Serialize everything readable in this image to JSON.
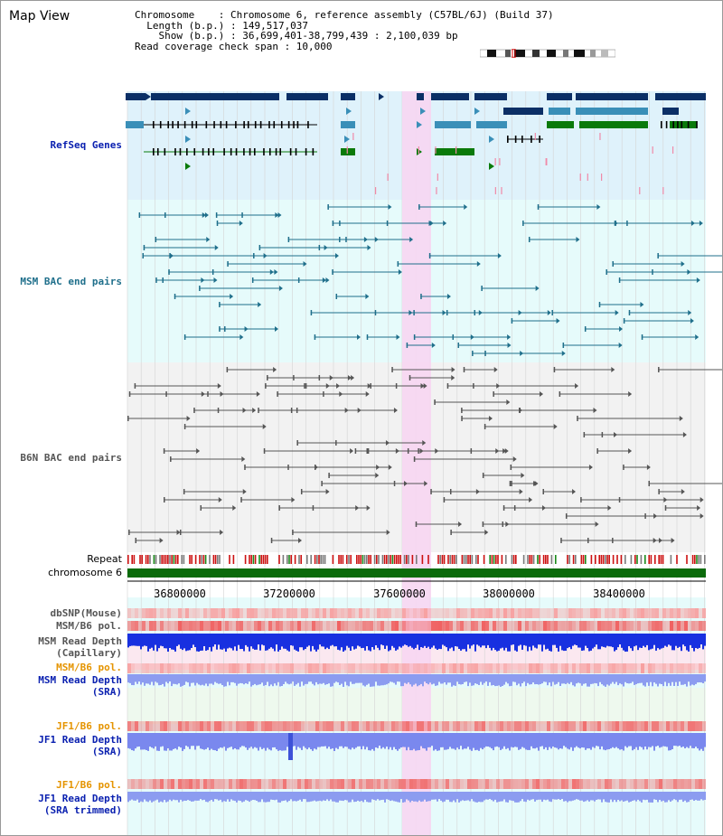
{
  "title": "Map View",
  "header": {
    "chromosome_line": "Chromosome    : Chromosome 6, reference assembly (C57BL/6J) (Build 37)",
    "length_line": "  Length (b.p.) : 149,517,037",
    "show_line": "    Show (b.p.) : 36,699,401-38,799,439 : 2,100,039 bp",
    "coverage_line": "Read coverage check span : 10,000"
  },
  "tracks": {
    "refseq": "RefSeq Genes",
    "msm_bac": "MSM BAC end pairs",
    "b6n_bac": "B6N BAC end pairs",
    "repeat": "Repeat",
    "chromosome": "chromosome 6",
    "dbsnp": "dbSNP(Mouse)",
    "msm_b6_pol": "MSM/B6 pol.",
    "msm_depth_cap_1": "MSM Read Depth",
    "msm_depth_cap_2": "(Capillary)",
    "msm_b6_pol_2": "MSM/B6 pol.",
    "msm_depth_sra_1": "MSM Read Depth",
    "msm_depth_sra_2": "(SRA)",
    "jf1_b6_pol": "JF1/B6 pol.",
    "jf1_depth_1": "JF1 Read Depth",
    "jf1_depth_2": "(SRA)",
    "jf1_b6_pol_2": "JF1/B6 pol.",
    "jf1_trim_1": "JF1 Read Depth",
    "jf1_trim_2": "(SRA trimmed)"
  },
  "axis": {
    "ticks": [
      "36800000",
      "37200000",
      "37600000",
      "38000000",
      "38400000"
    ]
  },
  "colors": {
    "refseq_bg": "#dff2fb",
    "msm_bg": "#e6fbfb",
    "b6n_bg": "#f2f2f2",
    "highlight": "#f7d6f2",
    "gene_navy": "#0b2f66",
    "gene_teal": "#3a8fb8",
    "gene_green": "#0a7a0a",
    "msm_pair": "#1f6f8b",
    "b6n_pair": "#555555",
    "chrom_bar": "#0b6b0b",
    "label_blue": "#0a20b0",
    "label_orange": "#e59400",
    "label_gray": "#333333"
  }
}
